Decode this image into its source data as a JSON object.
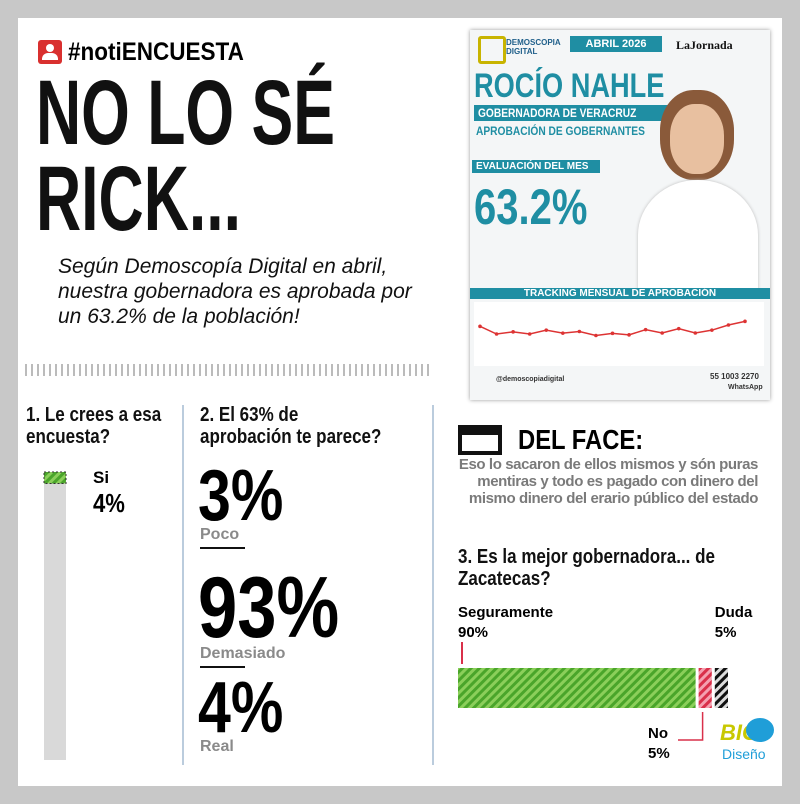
{
  "header": {
    "hashtag_prefix": "#noti",
    "hashtag_suffix": "ENCUESTA",
    "title_line1": "NO LO SÉ",
    "title_line2": "RICK...",
    "intro": "Según Demoscopía Digital en abril, nuestra gobernadora es aprobada por un 63.2% de la población!"
  },
  "poster": {
    "brand": "DEMOSCOPIA DIGITAL",
    "date": "ABRIL 2026",
    "newspaper": "LaJornada",
    "name": "ROCÍO NAHLE",
    "role": "GOBERNADORA DE VERACRUZ",
    "survey": "APROBACIÓN DE GOBERNANTES",
    "month_label": "EVALUACIÓN DEL MES",
    "approval": "63.2%",
    "tracking_title": "TRACKING MENSUAL DE APROBACIÓN",
    "tracking_values": [
      60.2,
      55.6,
      56.9,
      55.6,
      57.9,
      56.1,
      57.1,
      54.7,
      56.0,
      55.1,
      58.2,
      56.2,
      58.8,
      56.2,
      57.9,
      61.0,
      63.2
    ],
    "tracking_ylim": [
      40,
      70
    ],
    "social": "@demoscopiadigital",
    "phone": "55 1003 2270",
    "whatsapp": "WhatsApp"
  },
  "question1": {
    "title": "1. Le crees a esa encuesta?",
    "category": "Si",
    "value": 4,
    "value_label": "4%",
    "ylim": [
      0,
      100
    ]
  },
  "question2": {
    "title": "2. El 63% de aprobación te parece?",
    "options": [
      {
        "value": "3%",
        "label": "Poco"
      },
      {
        "value": "93%",
        "label": "Demasiado"
      },
      {
        "value": "4%",
        "label": "Real"
      }
    ]
  },
  "del_face": {
    "title": "DEL FACE:",
    "text": "Eso lo sacaron de ellos mismos y són puras mentiras y todo es pagado con dinero del mismo dinero del erario público del estado"
  },
  "question3": {
    "title": "3. Es la mejor gobernadora... de Zacatecas?",
    "categories": [
      "Seguramente",
      "No",
      "Duda"
    ],
    "values": [
      90,
      5,
      5
    ],
    "value_labels": [
      "90%",
      "5%",
      "5%"
    ],
    "xlim": [
      0,
      100
    ]
  },
  "logo": {
    "big": "BIG",
    "sub": "Diseño"
  }
}
